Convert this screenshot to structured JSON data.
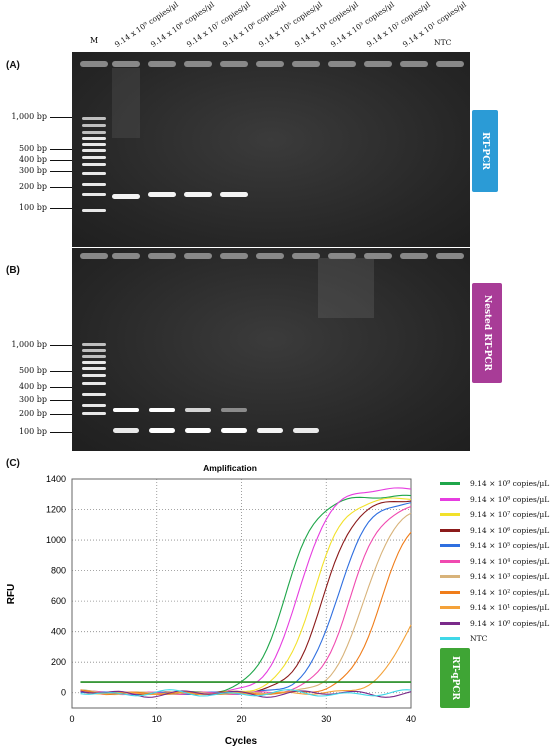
{
  "panels": {
    "a_label": "(A)",
    "b_label": "(B)",
    "c_label": "(C)"
  },
  "gel_top": {
    "marker_header": "M",
    "lane_headers": [
      "9.14 x 10⁹ copies/µl",
      "9.14 x 10⁸ copies/µl",
      "9.14 x 10⁷ copies/µl",
      "9.14 x 10⁶ copies/µl",
      "9.14 x 10⁵ copies/µl",
      "9.14 x 10⁴ copies/µl",
      "9.14 x 10³ copies/µl",
      "9.14 x 10² copies/µl",
      "9.14 x 10¹ copies/µl",
      "NTC"
    ],
    "bp_labels": [
      "1,000 bp",
      "500 bp",
      "400 bp",
      "300 bp",
      "200 bp",
      "100 bp"
    ],
    "tag": "RT-PCR",
    "tag_color": "#2b9bd6"
  },
  "gel_bottom": {
    "bp_labels": [
      "1,000 bp",
      "500 bp",
      "400 bp",
      "300 bp",
      "200 bp",
      "100 bp"
    ],
    "tag": "Nested RT-PCR",
    "tag_color": "#a83c97"
  },
  "chart_data": {
    "type": "line",
    "title": "Amplification",
    "xlabel": "Cycles",
    "ylabel": "RFU",
    "xlim": [
      0,
      40
    ],
    "ylim": [
      -100,
      1400
    ],
    "x_ticks": [
      0,
      10,
      20,
      30,
      40
    ],
    "y_ticks": [
      0,
      200,
      400,
      600,
      800,
      1000,
      1200,
      1400
    ],
    "threshold": 70,
    "threshold_color": "#1e8a1e",
    "grid": true,
    "legend_position": "right",
    "tag": "RT-qPCR",
    "tag_color": "#3fa535",
    "series": [
      {
        "name": "9.14 × 10⁹ copies/µL",
        "color": "#1fa64a",
        "ct": 21.0,
        "max": 1290
      },
      {
        "name": "9.14 × 10⁸ copies/µL",
        "color": "#e63de0",
        "ct": 22.6,
        "max": 1340
      },
      {
        "name": "9.14 × 10⁷ copies/µL",
        "color": "#f2e12a",
        "ct": 24.2,
        "max": 1280
      },
      {
        "name": "9.14 × 10⁶ copies/µL",
        "color": "#8b1a1a",
        "ct": 25.5,
        "max": 1270
      },
      {
        "name": "9.14 × 10⁵ copies/µL",
        "color": "#2f6fe0",
        "ct": 27.1,
        "max": 1260
      },
      {
        "name": "9.14 × 10⁴ copies/µL",
        "color": "#f04ab0",
        "ct": 28.6,
        "max": 1240
      },
      {
        "name": "9.14 × 10³ copies/µL",
        "color": "#d8b37a",
        "ct": 30.3,
        "max": 1230
      },
      {
        "name": "9.14 × 10² copies/µL",
        "color": "#f07d1a",
        "ct": 32.2,
        "max": 1200
      },
      {
        "name": "9.14 × 10¹ copies/µL",
        "color": "#f4a23a",
        "ct": 35.5,
        "max": 840
      },
      {
        "name": "9.14 × 10⁰ copies/µL",
        "color": "#7a2a8a",
        "ct": null,
        "max": 0
      },
      {
        "name": "NTC",
        "color": "#3fd8e8",
        "ct": null,
        "max": 0
      }
    ]
  }
}
